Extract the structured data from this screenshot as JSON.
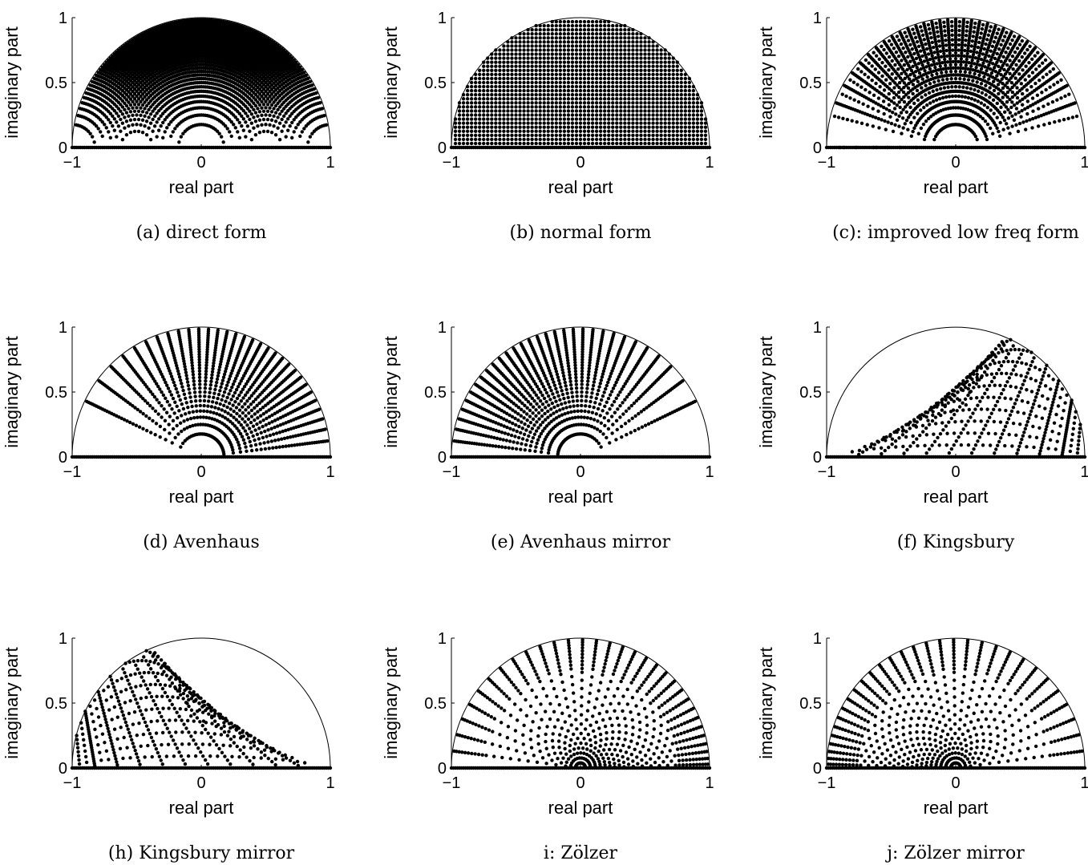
{
  "colors": {
    "ink": "#000000",
    "background": "#ffffff"
  },
  "chart_data": [
    {
      "id": "a",
      "type": "scatter",
      "caption": "(a) direct form",
      "xlabel": "real part",
      "ylabel": "imaginary part",
      "xlim": [
        -1,
        1
      ],
      "ylim": [
        0,
        1
      ],
      "xticks": [
        "−1",
        "0",
        "1"
      ],
      "yticks": [
        "0",
        "0.5",
        "1"
      ],
      "boundary": "unit semicircle",
      "structure": "direct",
      "param_grid": {
        "quantization_steps": 32
      }
    },
    {
      "id": "b",
      "type": "scatter",
      "caption": "(b) normal form",
      "xlabel": "real part",
      "ylabel": "imaginary part",
      "xlim": [
        -1,
        1
      ],
      "ylim": [
        0,
        1
      ],
      "xticks": [
        "−1",
        "0",
        "1"
      ],
      "yticks": [
        "0",
        "0.5",
        "1"
      ],
      "boundary": "unit semicircle",
      "structure": "normal",
      "param_grid": {
        "quantization_steps": 32
      }
    },
    {
      "id": "c",
      "type": "scatter",
      "caption": "(c): improved low freq form",
      "xlabel": "real part",
      "ylabel": "imaginary part",
      "xlim": [
        -1,
        1
      ],
      "ylim": [
        0,
        1
      ],
      "xticks": [
        "−1",
        "0",
        "1"
      ],
      "yticks": [
        "0",
        "0.5",
        "1"
      ],
      "boundary": "unit semicircle",
      "structure": "improved",
      "param_grid": {
        "quantization_steps": 32
      }
    },
    {
      "id": "d",
      "type": "scatter",
      "caption": "(d) Avenhaus",
      "xlabel": "real part",
      "ylabel": "imaginary part",
      "xlim": [
        -1,
        1
      ],
      "ylim": [
        0,
        1
      ],
      "xticks": [
        "−1",
        "0",
        "1"
      ],
      "yticks": [
        "0",
        "0.5",
        "1"
      ],
      "boundary": "unit semicircle",
      "structure": "avenhaus",
      "param_grid": {
        "quantization_steps": 32
      }
    },
    {
      "id": "e",
      "type": "scatter",
      "caption": "(e) Avenhaus mirror",
      "xlabel": "real part",
      "ylabel": "imaginary part",
      "xlim": [
        -1,
        1
      ],
      "ylim": [
        0,
        1
      ],
      "xticks": [
        "−1",
        "0",
        "1"
      ],
      "yticks": [
        "0",
        "0.5",
        "1"
      ],
      "boundary": "unit semicircle",
      "structure": "avenhaus-mirror",
      "param_grid": {
        "quantization_steps": 32
      }
    },
    {
      "id": "f",
      "type": "scatter",
      "caption": "(f) Kingsbury",
      "xlabel": "real part",
      "ylabel": "imaginary part",
      "xlim": [
        -1,
        1
      ],
      "ylim": [
        0,
        1
      ],
      "xticks": [
        "−1",
        "0",
        "1"
      ],
      "yticks": [
        "0",
        "0.5",
        "1"
      ],
      "boundary": "unit semicircle",
      "structure": "kingsbury",
      "param_grid": {
        "quantization_steps": 32
      }
    },
    {
      "id": "h",
      "type": "scatter",
      "caption": "(h) Kingsbury mirror",
      "xlabel": "real part",
      "ylabel": "imaginary part",
      "xlim": [
        -1,
        1
      ],
      "ylim": [
        0,
        1
      ],
      "xticks": [
        "−1",
        "0",
        "1"
      ],
      "yticks": [
        "0",
        "0.5",
        "1"
      ],
      "boundary": "unit semicircle",
      "structure": "kingsbury-mirror",
      "param_grid": {
        "quantization_steps": 32
      }
    },
    {
      "id": "i",
      "type": "scatter",
      "caption": "i: Zölzer",
      "xlabel": "real part",
      "ylabel": "imaginary part",
      "xlim": [
        -1,
        1
      ],
      "ylim": [
        0,
        1
      ],
      "xticks": [
        "−1",
        "0",
        "1"
      ],
      "yticks": [
        "0",
        "0.5",
        "1"
      ],
      "boundary": "unit semicircle",
      "structure": "zolzer",
      "param_grid": {
        "quantization_steps": 32
      }
    },
    {
      "id": "j",
      "type": "scatter",
      "caption": "j: Zölzer mirror",
      "xlabel": "real part",
      "ylabel": "imaginary part",
      "xlim": [
        -1,
        1
      ],
      "ylim": [
        0,
        1
      ],
      "xticks": [
        "−1",
        "0",
        "1"
      ],
      "yticks": [
        "0",
        "0.5",
        "1"
      ],
      "boundary": "unit semicircle",
      "structure": "zolzer-mirror",
      "param_grid": {
        "quantization_steps": 32
      }
    }
  ]
}
